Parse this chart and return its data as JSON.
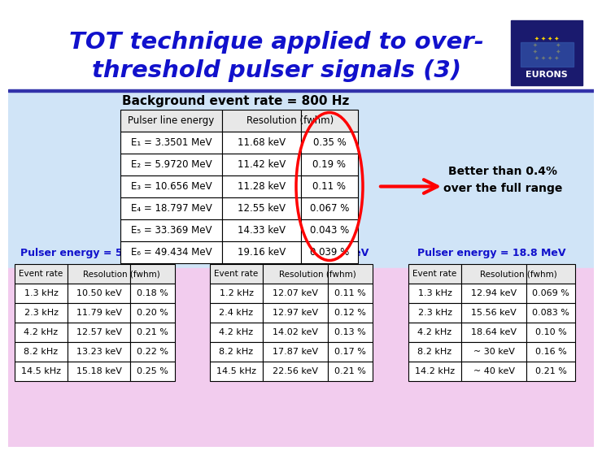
{
  "title_line1": "TOT technique applied to over-",
  "title_line2": "threshold pulser signals (3)",
  "title_color": "#1111CC",
  "bg_top_color": "#D0E8FF",
  "bg_bottom_color": "#F0CCEE",
  "title_bg_color": "#FFFFFF",
  "subtitle": "Background event rate = 800 Hz",
  "main_table_header": [
    "Pulser line energy",
    "Resolution (fwhm)",
    ""
  ],
  "main_table_rows": [
    [
      "E₁ = 3.3501 MeV",
      "11.68 keV",
      "0.35 %"
    ],
    [
      "E₂ = 5.9720 MeV",
      "11.42 keV",
      "0.19 %"
    ],
    [
      "E₃ = 10.656 MeV",
      "11.28 keV",
      "0.11 %"
    ],
    [
      "E₄ = 18.797 MeV",
      "12.55 keV",
      "0.067 %"
    ],
    [
      "E₅ = 33.369 MeV",
      "14.33 keV",
      "0.043 %"
    ],
    [
      "E₆ = 49.434 MeV",
      "19.16 keV",
      "0.039 %"
    ]
  ],
  "better_text": "Better than 0.4%\nover the full range",
  "pulser_tables": [
    {
      "title": "Pulser energy = 5.97 MeV",
      "rows": [
        [
          "1.3 kHz",
          "10.50 keV",
          "0.18 %"
        ],
        [
          "2.3 kHz",
          "11.79 keV",
          "0.20 %"
        ],
        [
          "4.2 kHz",
          "12.57 keV",
          "0.21 %"
        ],
        [
          "8.2 kHz",
          "13.23 keV",
          "0.22 %"
        ],
        [
          "14.5 kHz",
          "15.18 keV",
          "0.25 %"
        ]
      ]
    },
    {
      "title": "Pulser energy = 10.65 MeV",
      "rows": [
        [
          "1.2 kHz",
          "12.07 keV",
          "0.11 %"
        ],
        [
          "2.4 kHz",
          "12.97 keV",
          "0.12 %"
        ],
        [
          "4.2 kHz",
          "14.02 keV",
          "0.13 %"
        ],
        [
          "8.2 kHz",
          "17.87 keV",
          "0.17 %"
        ],
        [
          "14.5 kHz",
          "22.56 keV",
          "0.21 %"
        ]
      ]
    },
    {
      "title": "Pulser energy = 18.8 MeV",
      "rows": [
        [
          "1.3 kHz",
          "12.94 keV",
          "0.069 %"
        ],
        [
          "2.3 kHz",
          "15.56 keV",
          "0.083 %"
        ],
        [
          "4.2 kHz",
          "18.64 keV",
          "0.10 %"
        ],
        [
          "8.2 kHz",
          "~ 30 keV",
          "0.16 %"
        ],
        [
          "14.2 kHz",
          "~ 40 keV",
          "0.21 %"
        ]
      ]
    }
  ]
}
